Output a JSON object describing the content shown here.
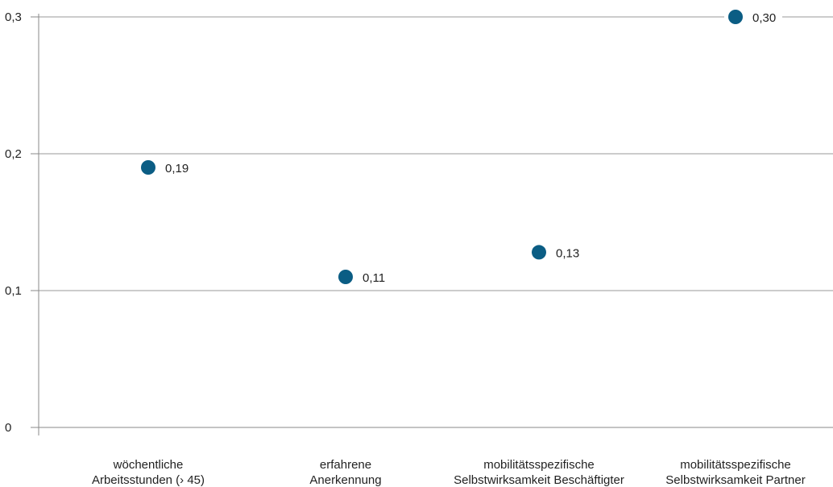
{
  "chart_data": {
    "type": "scatter",
    "title": "",
    "xlabel": "",
    "ylabel": "",
    "ylim": [
      0,
      0.3
    ],
    "yticks": [
      {
        "value": 0,
        "label": "0"
      },
      {
        "value": 0.1,
        "label": "0,1"
      },
      {
        "value": 0.2,
        "label": "0,2"
      },
      {
        "value": 0.3,
        "label": "0,3"
      }
    ],
    "grid": true,
    "categories": [
      [
        "wöchentliche",
        "Arbeitsstunden (› 45)"
      ],
      [
        "erfahrene",
        "Anerkennung"
      ],
      [
        "mobilitätsspezifische",
        "Selbstwirksamkeit Beschäftigter"
      ],
      [
        "mobilitätsspezifische",
        "Selbstwirksamkeit Partner"
      ]
    ],
    "series": [
      {
        "values": [
          0.19,
          0.11,
          0.128,
          0.3
        ],
        "labels": [
          "0,19",
          "0,11",
          "0,13",
          "0,30"
        ],
        "color": "#0b5d84"
      }
    ]
  }
}
